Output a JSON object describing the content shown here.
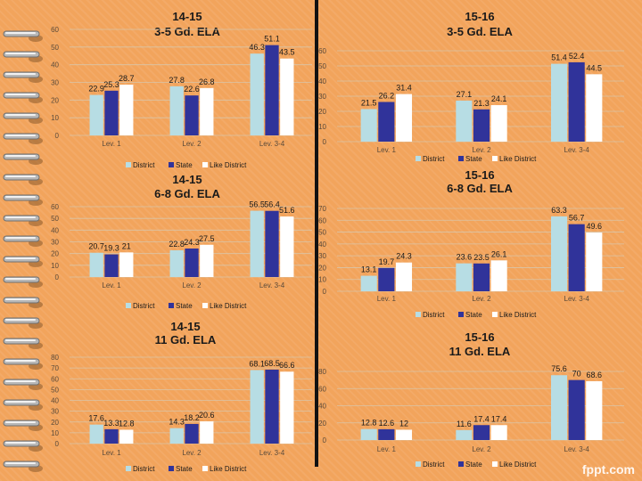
{
  "colors": {
    "district": "#b7dde4",
    "state": "#30339a",
    "like_district": "#ffffff",
    "text": "#1a1a1a",
    "axis_text": "#5a4a3a",
    "grid": "#d9c5a8"
  },
  "watermark": "fppt.com",
  "chart_data": [
    {
      "type": "bar",
      "title": "14-15",
      "subtitle": "3-5 Gd. ELA",
      "categories": [
        "Lev. 1",
        "Lev. 2",
        "Lev. 3-4"
      ],
      "series": [
        {
          "name": "District",
          "values": [
            22.9,
            27.8,
            46.3
          ]
        },
        {
          "name": "State",
          "values": [
            25.3,
            22.6,
            51.1
          ]
        },
        {
          "name": "Like District",
          "values": [
            28.7,
            26.8,
            43.5
          ]
        }
      ],
      "value_labels": [
        [
          "22.9",
          "25.3",
          "28.7"
        ],
        [
          "27.8",
          "22.6",
          "26.8"
        ],
        [
          "46.3",
          "51.1",
          "43.5"
        ]
      ],
      "ylim": [
        0,
        60
      ],
      "yticks": [
        0,
        10,
        20,
        30,
        40,
        50,
        60
      ],
      "legend": [
        "District",
        "State",
        "Like District"
      ]
    },
    {
      "type": "bar",
      "title": "15-16",
      "subtitle": "3-5 Gd. ELA",
      "categories": [
        "Lev. 1",
        "Lev. 2",
        "Lev. 3-4"
      ],
      "series": [
        {
          "name": "District",
          "values": [
            21.5,
            27.1,
            51.4
          ]
        },
        {
          "name": "State",
          "values": [
            26.2,
            21.3,
            52.4
          ]
        },
        {
          "name": "Like District",
          "values": [
            31.4,
            24.1,
            44.5
          ]
        }
      ],
      "value_labels": [
        [
          "21.5",
          "26.2",
          "31.4"
        ],
        [
          "27.1",
          "21.3",
          "24.1"
        ],
        [
          "51.4",
          "52.4",
          "44.5"
        ]
      ],
      "ylim": [
        0,
        60
      ],
      "yticks": [
        0,
        10,
        20,
        30,
        40,
        50,
        60
      ],
      "legend": [
        "District",
        "State",
        "Like District"
      ]
    },
    {
      "type": "bar",
      "title": "14-15",
      "subtitle": "6-8 Gd. ELA",
      "categories": [
        "Lev. 1",
        "Lev. 2",
        "Lev. 3-4"
      ],
      "series": [
        {
          "name": "District",
          "values": [
            20.7,
            22.8,
            56.5
          ]
        },
        {
          "name": "State",
          "values": [
            19.3,
            24.3,
            56.4
          ]
        },
        {
          "name": "Like District",
          "values": [
            21,
            27.5,
            51.6
          ]
        }
      ],
      "value_labels": [
        [
          "20.7",
          "19.3",
          "21"
        ],
        [
          "22.8",
          "24.3",
          "27.5"
        ],
        [
          "56.5",
          "56.4",
          "51.6"
        ]
      ],
      "ylim": [
        0,
        60
      ],
      "yticks": [
        0,
        10,
        20,
        30,
        40,
        50,
        60
      ],
      "legend": [
        "District",
        "State",
        "Like District"
      ]
    },
    {
      "type": "bar",
      "title": "15-16",
      "subtitle": "6-8 Gd. ELA",
      "categories": [
        "Lev. 1",
        "Lev. 2",
        "Lev. 3-4"
      ],
      "series": [
        {
          "name": "District",
          "values": [
            13.1,
            23.6,
            63.3
          ]
        },
        {
          "name": "State",
          "values": [
            19.7,
            23.5,
            56.7
          ]
        },
        {
          "name": "Like District",
          "values": [
            24.3,
            26.1,
            49.6
          ]
        }
      ],
      "value_labels": [
        [
          "13.1",
          "19.7",
          "24.3"
        ],
        [
          "23.6",
          "23.5",
          "26.1"
        ],
        [
          "63.3",
          "56.7",
          "49.6"
        ]
      ],
      "ylim": [
        0,
        70
      ],
      "yticks": [
        0,
        10,
        20,
        30,
        40,
        50,
        60,
        70
      ],
      "legend": [
        "District",
        "State",
        "Like District"
      ]
    },
    {
      "type": "bar",
      "title": "14-15",
      "subtitle": "11 Gd. ELA",
      "categories": [
        "Lev. 1",
        "Lev. 2",
        "Lev. 3-4"
      ],
      "series": [
        {
          "name": "District",
          "values": [
            17.6,
            14.3,
            68.1
          ]
        },
        {
          "name": "State",
          "values": [
            13.3,
            18.2,
            68.5
          ]
        },
        {
          "name": "Like District",
          "values": [
            12.8,
            20.6,
            66.6
          ]
        }
      ],
      "value_labels": [
        [
          "17.6",
          "13.3",
          "12.8"
        ],
        [
          "14.3",
          "18.2",
          "20.6"
        ],
        [
          "68.1",
          "68.5",
          "66.6"
        ]
      ],
      "ylim": [
        0,
        80
      ],
      "yticks": [
        0,
        10,
        20,
        30,
        40,
        50,
        60,
        70,
        80
      ],
      "legend": [
        "District",
        "State",
        "Like District"
      ]
    },
    {
      "type": "bar",
      "title": "15-16",
      "subtitle": "11 Gd. ELA",
      "categories": [
        "Lev. 1",
        "Lev. 2",
        "Lev. 3-4"
      ],
      "series": [
        {
          "name": "District",
          "values": [
            12.8,
            11.6,
            75.6
          ]
        },
        {
          "name": "State",
          "values": [
            12.6,
            17.4,
            70
          ]
        },
        {
          "name": "Like District",
          "values": [
            12,
            17.4,
            68.6
          ]
        }
      ],
      "value_labels": [
        [
          "12.8",
          "12.6",
          "12"
        ],
        [
          "11.6",
          "17.4",
          "17.4"
        ],
        [
          "75.6",
          "70",
          "68.6"
        ]
      ],
      "ylim": [
        0,
        80
      ],
      "yticks": [
        0,
        20,
        40,
        60,
        80
      ],
      "legend": [
        "District",
        "State",
        "Like District"
      ]
    }
  ]
}
